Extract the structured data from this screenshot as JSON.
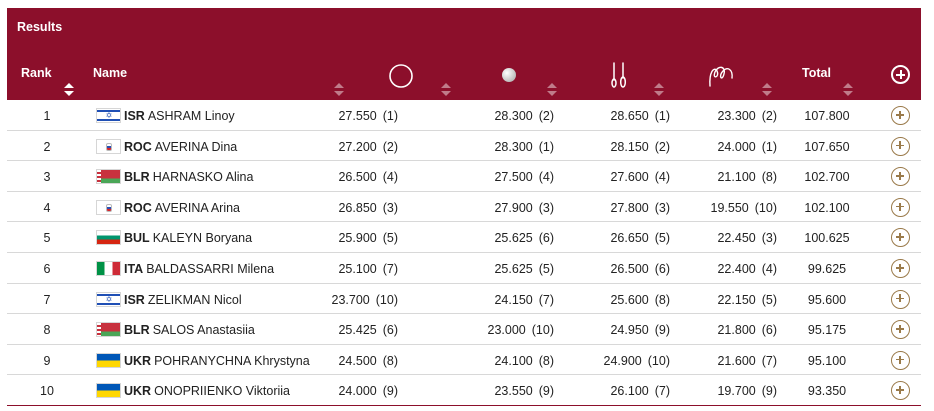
{
  "header": {
    "title": "Results",
    "columns": {
      "rank": "Rank",
      "name": "Name",
      "total": "Total"
    },
    "apparatus_icons": [
      "hoop-icon",
      "ball-icon",
      "clubs-icon",
      "ribbon-icon"
    ]
  },
  "colors": {
    "header_bg": "#8c0f2b",
    "accent_gold": "#9a7a4a"
  },
  "rows": [
    {
      "rank": "1",
      "flag": "ISR",
      "noc": "ISR",
      "name": "ASHRAM Linoy",
      "hoop": "27.550",
      "hoop_rank": "(1)",
      "ball": "28.300",
      "ball_rank": "(2)",
      "clubs": "28.650",
      "clubs_rank": "(1)",
      "ribbon": "23.300",
      "ribbon_rank": "(2)",
      "total": "107.800"
    },
    {
      "rank": "2",
      "flag": "ROC",
      "noc": "ROC",
      "name": "AVERINA Dina",
      "hoop": "27.200",
      "hoop_rank": "(2)",
      "ball": "28.300",
      "ball_rank": "(1)",
      "clubs": "28.150",
      "clubs_rank": "(2)",
      "ribbon": "24.000",
      "ribbon_rank": "(1)",
      "total": "107.650"
    },
    {
      "rank": "3",
      "flag": "BLR",
      "noc": "BLR",
      "name": "HARNASKO Alina",
      "hoop": "26.500",
      "hoop_rank": "(4)",
      "ball": "27.500",
      "ball_rank": "(4)",
      "clubs": "27.600",
      "clubs_rank": "(4)",
      "ribbon": "21.100",
      "ribbon_rank": "(8)",
      "total": "102.700"
    },
    {
      "rank": "4",
      "flag": "ROC",
      "noc": "ROC",
      "name": "AVERINA Arina",
      "hoop": "26.850",
      "hoop_rank": "(3)",
      "ball": "27.900",
      "ball_rank": "(3)",
      "clubs": "27.800",
      "clubs_rank": "(3)",
      "ribbon": "19.550",
      "ribbon_rank": "(10)",
      "total": "102.100"
    },
    {
      "rank": "5",
      "flag": "BUL",
      "noc": "BUL",
      "name": "KALEYN Boryana",
      "hoop": "25.900",
      "hoop_rank": "(5)",
      "ball": "25.625",
      "ball_rank": "(6)",
      "clubs": "26.650",
      "clubs_rank": "(5)",
      "ribbon": "22.450",
      "ribbon_rank": "(3)",
      "total": "100.625"
    },
    {
      "rank": "6",
      "flag": "ITA",
      "noc": "ITA",
      "name": "BALDASSARRI Milena",
      "hoop": "25.100",
      "hoop_rank": "(7)",
      "ball": "25.625",
      "ball_rank": "(5)",
      "clubs": "26.500",
      "clubs_rank": "(6)",
      "ribbon": "22.400",
      "ribbon_rank": "(4)",
      "total": "99.625"
    },
    {
      "rank": "7",
      "flag": "ISR",
      "noc": "ISR",
      "name": "ZELIKMAN Nicol",
      "hoop": "23.700",
      "hoop_rank": "(10)",
      "ball": "24.150",
      "ball_rank": "(7)",
      "clubs": "25.600",
      "clubs_rank": "(8)",
      "ribbon": "22.150",
      "ribbon_rank": "(5)",
      "total": "95.600"
    },
    {
      "rank": "8",
      "flag": "BLR",
      "noc": "BLR",
      "name": "SALOS Anastasiia",
      "hoop": "25.425",
      "hoop_rank": "(6)",
      "ball": "23.000",
      "ball_rank": "(10)",
      "clubs": "24.950",
      "clubs_rank": "(9)",
      "ribbon": "21.800",
      "ribbon_rank": "(6)",
      "total": "95.175"
    },
    {
      "rank": "9",
      "flag": "UKR",
      "noc": "UKR",
      "name": "POHRANYCHNA Khrystyna",
      "hoop": "24.500",
      "hoop_rank": "(8)",
      "ball": "24.100",
      "ball_rank": "(8)",
      "clubs": "24.900",
      "clubs_rank": "(10)",
      "ribbon": "21.600",
      "ribbon_rank": "(7)",
      "total": "95.100"
    },
    {
      "rank": "10",
      "flag": "UKR",
      "noc": "UKR",
      "name": "ONOPRIIENKO Viktoriia",
      "hoop": "24.000",
      "hoop_rank": "(9)",
      "ball": "23.550",
      "ball_rank": "(9)",
      "clubs": "26.100",
      "clubs_rank": "(7)",
      "ribbon": "19.700",
      "ribbon_rank": "(9)",
      "total": "93.350"
    }
  ]
}
